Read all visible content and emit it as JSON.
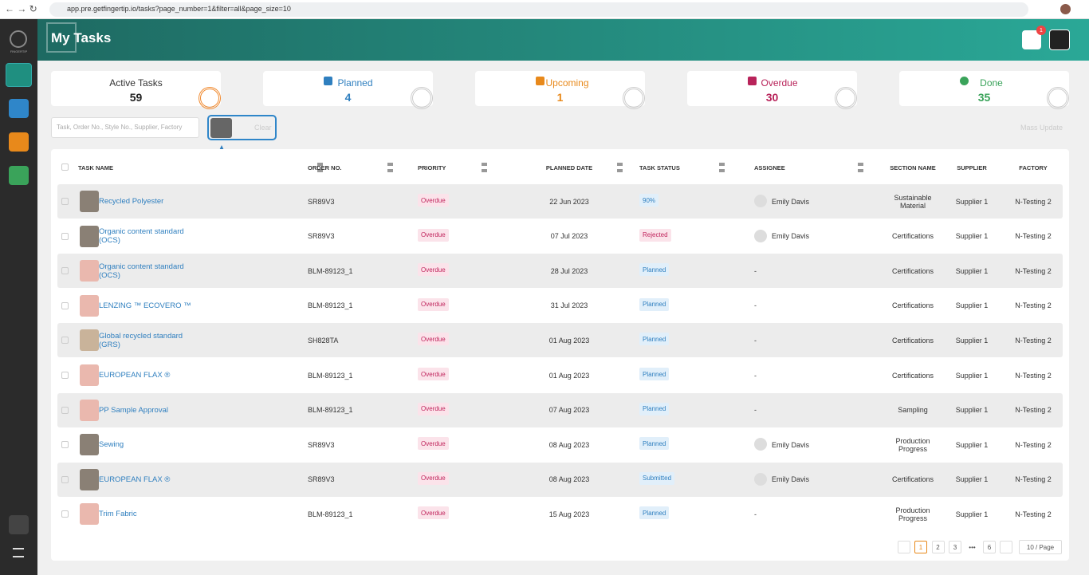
{
  "browser": {
    "url": "app.pre.getfingertip.io/tasks?page_number=1&filter=all&page_size=10"
  },
  "sidebar": {
    "logo": "FINGERTIP"
  },
  "header": {
    "title": "My Tasks",
    "notifications": 1
  },
  "stats": [
    {
      "label": "Active Tasks",
      "value": 59,
      "color": "#222222"
    },
    {
      "label": "Planned",
      "value": 4,
      "color": "#2f7fbf"
    },
    {
      "label": "Upcoming",
      "value": 1,
      "color": "#e8891b"
    },
    {
      "label": "Overdue",
      "value": 30,
      "color": "#b8235a"
    },
    {
      "label": "Done",
      "value": 35,
      "color": "#3aa35a"
    }
  ],
  "toolbar": {
    "search_placeholder": "Task, Order No., Style No., Supplier, Factory",
    "clear": "Clear",
    "mass_update": "Mass Update"
  },
  "table": {
    "columns": [
      "TASK NAME",
      "ORDER NO.",
      "PRIORITY",
      "PLANNED DATE",
      "TASK STATUS",
      "ASSIGNEE",
      "SECTION NAME",
      "SUPPLIER",
      "FACTORY"
    ],
    "rows": [
      {
        "image": "#8a8075",
        "cells": [
          "Recycled Polyester",
          "SR89V3",
          "Overdue",
          "22 Jun 2023",
          "90%",
          "Emily Davis",
          "Sustainable Material",
          "Supplier 1",
          "N-Testing 2"
        ]
      },
      {
        "image": "#8a8075",
        "cells": [
          "Organic content standard (OCS)",
          "SR89V3",
          "Overdue",
          "07 Jul 2023",
          "Rejected",
          "Emily Davis",
          "Certifications",
          "Supplier 1",
          "N-Testing 2"
        ]
      },
      {
        "image": "#eab8ae",
        "cells": [
          "Organic content standard (OCS)",
          "BLM-89123_1",
          "Overdue",
          "28 Jul 2023",
          "Planned",
          "-",
          "Certifications",
          "Supplier 1",
          "N-Testing 2"
        ]
      },
      {
        "image": "#eab8ae",
        "cells": [
          "LENZING ™ ECOVERO ™",
          "BLM-89123_1",
          "Overdue",
          "31 Jul 2023",
          "Planned",
          "-",
          "Certifications",
          "Supplier 1",
          "N-Testing 2"
        ]
      },
      {
        "image": "#c9b39a",
        "cells": [
          "Global recycled standard (GRS)",
          "SH828TA",
          "Overdue",
          "01 Aug 2023",
          "Planned",
          "-",
          "Certifications",
          "Supplier 1",
          "N-Testing 2"
        ]
      },
      {
        "image": "#eab8ae",
        "cells": [
          "EUROPEAN FLAX ®",
          "BLM-89123_1",
          "Overdue",
          "01 Aug 2023",
          "Planned",
          "-",
          "Certifications",
          "Supplier 1",
          "N-Testing 2"
        ]
      },
      {
        "image": "#eab8ae",
        "cells": [
          "PP Sample Approval",
          "BLM-89123_1",
          "Overdue",
          "07 Aug 2023",
          "Planned",
          "-",
          "Sampling",
          "Supplier 1",
          "N-Testing 2"
        ]
      },
      {
        "image": "#8a8075",
        "cells": [
          "Sewing",
          "SR89V3",
          "Overdue",
          "08 Aug 2023",
          "Planned",
          "Emily Davis",
          "Production Progress",
          "Supplier 1",
          "N-Testing 2"
        ]
      },
      {
        "image": "#8a8075",
        "cells": [
          "EUROPEAN FLAX ®",
          "SR89V3",
          "Overdue",
          "08 Aug 2023",
          "Submitted",
          "Emily Davis",
          "Certifications",
          "Supplier 1",
          "N-Testing 2"
        ]
      },
      {
        "image": "#eab8ae",
        "cells": [
          "Trim Fabric",
          "BLM-89123_1",
          "Overdue",
          "15 Aug 2023",
          "Planned",
          "-",
          "Production Progress",
          "Supplier 1",
          "N-Testing 2"
        ]
      }
    ]
  },
  "pagination": {
    "pages": [
      1,
      2,
      3,
      "•••",
      6
    ],
    "current": 1,
    "page_size": "10 / Page"
  }
}
